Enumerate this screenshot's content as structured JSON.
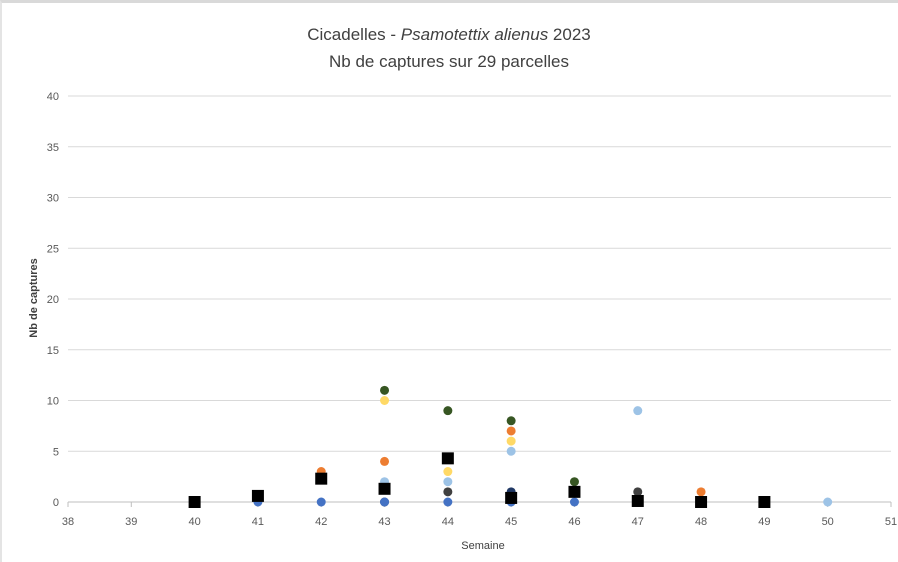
{
  "chart_data": {
    "type": "scatter",
    "title": {
      "prefix": "Cicadelles - ",
      "species": "Psamotettix alienus",
      "year": " 2023",
      "subtitle": "Nb de captures sur 29 parcelles"
    },
    "xlabel": "Semaine",
    "ylabel": "Nb de captures",
    "xlim": [
      38,
      51
    ],
    "ylim": [
      0,
      40
    ],
    "xticks": [
      38,
      39,
      40,
      41,
      42,
      43,
      44,
      45,
      46,
      47,
      48,
      49,
      50,
      51
    ],
    "yticks": [
      0,
      5,
      10,
      15,
      20,
      25,
      30,
      35,
      40
    ],
    "grid": "horizontal",
    "legend": "none",
    "series": [
      {
        "color": "#375623",
        "marker": "circle",
        "points": [
          [
            43,
            11
          ],
          [
            44,
            9
          ],
          [
            45,
            8
          ],
          [
            46,
            2
          ]
        ]
      },
      {
        "color": "#ffd966",
        "marker": "circle",
        "points": [
          [
            43,
            10
          ],
          [
            44,
            3
          ],
          [
            45,
            6
          ]
        ]
      },
      {
        "color": "#ed7d31",
        "marker": "circle",
        "points": [
          [
            42,
            3
          ],
          [
            43,
            4
          ],
          [
            45,
            7
          ],
          [
            48,
            1
          ]
        ]
      },
      {
        "color": "#9dc3e6",
        "marker": "circle",
        "points": [
          [
            43,
            2
          ],
          [
            44,
            2
          ],
          [
            45,
            5
          ],
          [
            47,
            9
          ],
          [
            50,
            0
          ]
        ]
      },
      {
        "color": "#404040",
        "marker": "circle",
        "points": [
          [
            44,
            1
          ],
          [
            47,
            1
          ]
        ]
      },
      {
        "color": "#203864",
        "marker": "circle",
        "points": [
          [
            43,
            0
          ],
          [
            45,
            1
          ]
        ]
      },
      {
        "color": "#4472c4",
        "marker": "circle",
        "points": [
          [
            41,
            0
          ],
          [
            42,
            0
          ],
          [
            43,
            0
          ],
          [
            44,
            0
          ],
          [
            45,
            0
          ],
          [
            46,
            0
          ],
          [
            47,
            0
          ]
        ]
      },
      {
        "color": "#000000",
        "marker": "square",
        "points": [
          [
            40,
            0
          ],
          [
            41,
            0.6
          ],
          [
            42,
            2.3
          ],
          [
            43,
            1.3
          ],
          [
            44,
            4.3
          ],
          [
            45,
            0.4
          ],
          [
            46,
            1.0
          ],
          [
            47,
            0.1
          ],
          [
            48,
            0
          ],
          [
            49,
            0
          ]
        ]
      }
    ]
  }
}
